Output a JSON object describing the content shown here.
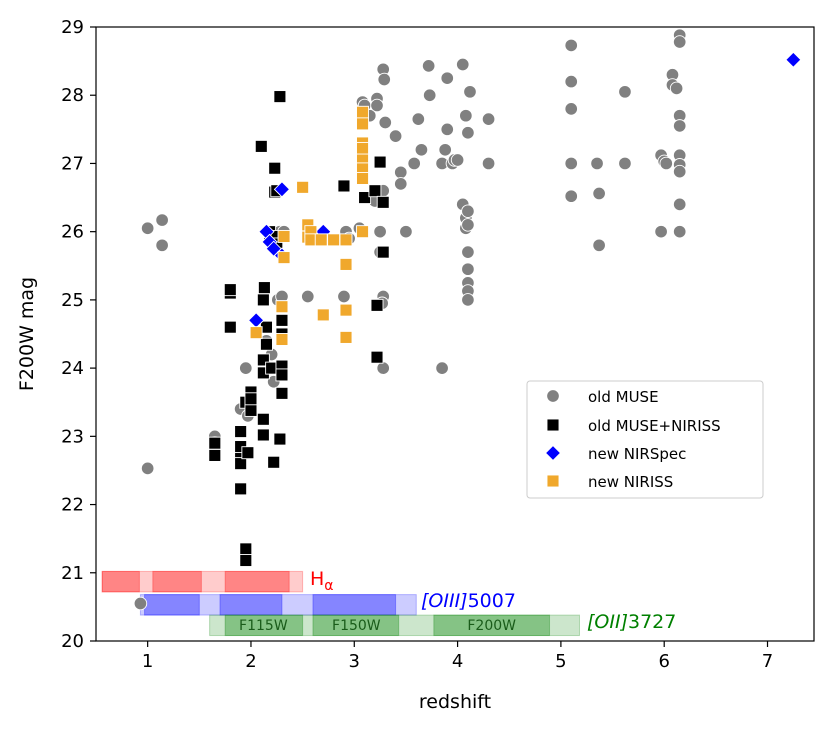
{
  "chart_data": {
    "type": "scatter",
    "xlabel": "redshift",
    "ylabel": "F200W mag",
    "xlim": [
      0.5,
      7.45
    ],
    "ylim": [
      20,
      29
    ],
    "xticks": [
      "1",
      "2",
      "3",
      "4",
      "5",
      "6",
      "7"
    ],
    "yticks": [
      "20",
      "21",
      "22",
      "23",
      "24",
      "25",
      "26",
      "27",
      "28",
      "29"
    ],
    "grid": false,
    "legend_position": "center-right",
    "series": [
      {
        "name": "old MUSE",
        "marker": "circle",
        "color": "#808080",
        "points": [
          [
            1.0,
            26.05
          ],
          [
            1.14,
            26.17
          ],
          [
            1.14,
            25.8
          ],
          [
            1.0,
            22.53
          ],
          [
            0.93,
            20.55
          ],
          [
            1.65,
            23.0
          ],
          [
            1.65,
            22.9
          ],
          [
            1.9,
            23.4
          ],
          [
            1.95,
            24.0
          ],
          [
            1.97,
            23.3
          ],
          [
            2.0,
            23.5
          ],
          [
            2.15,
            24.4
          ],
          [
            2.2,
            24.2
          ],
          [
            2.22,
            23.8
          ],
          [
            2.26,
            25.0
          ],
          [
            2.3,
            24.5
          ],
          [
            2.3,
            25.05
          ],
          [
            2.25,
            25.9
          ],
          [
            2.28,
            26.0
          ],
          [
            2.32,
            26.0
          ],
          [
            2.55,
            25.05
          ],
          [
            2.9,
            25.05
          ],
          [
            2.92,
            26.0
          ],
          [
            2.95,
            25.9
          ],
          [
            3.05,
            26.05
          ],
          [
            3.08,
            27.9
          ],
          [
            3.1,
            27.85
          ],
          [
            3.15,
            27.7
          ],
          [
            3.2,
            26.45
          ],
          [
            3.22,
            27.95
          ],
          [
            3.22,
            27.85
          ],
          [
            3.25,
            25.7
          ],
          [
            3.25,
            26.0
          ],
          [
            3.28,
            25.05
          ],
          [
            3.27,
            24.95
          ],
          [
            3.28,
            24.0
          ],
          [
            3.28,
            26.6
          ],
          [
            3.28,
            28.38
          ],
          [
            3.29,
            28.23
          ],
          [
            3.3,
            27.6
          ],
          [
            3.4,
            27.4
          ],
          [
            3.45,
            26.87
          ],
          [
            3.45,
            26.7
          ],
          [
            3.5,
            26.0
          ],
          [
            3.58,
            27.0
          ],
          [
            3.62,
            27.65
          ],
          [
            3.65,
            27.2
          ],
          [
            3.72,
            28.43
          ],
          [
            3.73,
            28.0
          ],
          [
            3.85,
            24.0
          ],
          [
            3.85,
            27.0
          ],
          [
            3.88,
            27.2
          ],
          [
            3.9,
            28.25
          ],
          [
            3.9,
            27.5
          ],
          [
            3.95,
            27.0
          ],
          [
            3.97,
            27.05
          ],
          [
            4.0,
            27.05
          ],
          [
            4.05,
            28.45
          ],
          [
            4.05,
            26.4
          ],
          [
            4.08,
            27.7
          ],
          [
            4.08,
            26.05
          ],
          [
            4.1,
            27.45
          ],
          [
            4.08,
            26.2
          ],
          [
            4.1,
            26.3
          ],
          [
            4.1,
            25.7
          ],
          [
            4.1,
            25.45
          ],
          [
            4.1,
            25.25
          ],
          [
            4.1,
            25.13
          ],
          [
            4.1,
            25.0
          ],
          [
            4.1,
            26.1
          ],
          [
            4.12,
            28.05
          ],
          [
            4.3,
            27.65
          ],
          [
            4.3,
            27.0
          ],
          [
            5.1,
            28.73
          ],
          [
            5.1,
            28.2
          ],
          [
            5.1,
            27.8
          ],
          [
            5.1,
            27.0
          ],
          [
            5.1,
            26.52
          ],
          [
            5.35,
            27.0
          ],
          [
            5.37,
            26.56
          ],
          [
            5.37,
            25.8
          ],
          [
            5.62,
            28.05
          ],
          [
            5.62,
            27.0
          ],
          [
            5.97,
            27.12
          ],
          [
            5.97,
            26.0
          ],
          [
            6.0,
            27.03
          ],
          [
            6.02,
            27.0
          ],
          [
            6.08,
            28.3
          ],
          [
            6.08,
            28.15
          ],
          [
            6.12,
            28.1
          ],
          [
            6.15,
            28.88
          ],
          [
            6.15,
            28.78
          ],
          [
            6.15,
            27.7
          ],
          [
            6.15,
            27.55
          ],
          [
            6.15,
            27.12
          ],
          [
            6.15,
            26.98
          ],
          [
            6.15,
            26.88
          ],
          [
            6.15,
            26.4
          ],
          [
            6.15,
            26.0
          ]
        ]
      },
      {
        "name": "old MUSE+NIRISS",
        "marker": "square",
        "color": "#000000",
        "points": [
          [
            1.65,
            22.9
          ],
          [
            1.65,
            22.72
          ],
          [
            1.8,
            25.1
          ],
          [
            1.8,
            25.15
          ],
          [
            1.8,
            24.6
          ],
          [
            1.9,
            23.07
          ],
          [
            1.9,
            22.7
          ],
          [
            1.9,
            22.85
          ],
          [
            1.9,
            22.6
          ],
          [
            1.9,
            22.23
          ],
          [
            1.95,
            21.35
          ],
          [
            1.95,
            21.18
          ],
          [
            1.95,
            23.5
          ],
          [
            1.97,
            22.76
          ],
          [
            2.0,
            23.65
          ],
          [
            2.0,
            23.38
          ],
          [
            2.0,
            23.55
          ],
          [
            2.1,
            27.25
          ],
          [
            2.12,
            23.25
          ],
          [
            2.12,
            23.02
          ],
          [
            2.12,
            24.12
          ],
          [
            2.12,
            23.93
          ],
          [
            2.12,
            25.0
          ],
          [
            2.13,
            25.18
          ],
          [
            2.15,
            24.6
          ],
          [
            2.15,
            24.35
          ],
          [
            2.18,
            25.9
          ],
          [
            2.18,
            26.0
          ],
          [
            2.2,
            24.0
          ],
          [
            2.22,
            22.62
          ],
          [
            2.23,
            26.93
          ],
          [
            2.23,
            26.58
          ],
          [
            2.25,
            26.6
          ],
          [
            2.25,
            25.93
          ],
          [
            2.25,
            25.82
          ],
          [
            2.28,
            27.98
          ],
          [
            2.28,
            22.96
          ],
          [
            2.3,
            23.63
          ],
          [
            2.3,
            24.5
          ],
          [
            2.3,
            24.03
          ],
          [
            2.3,
            23.9
          ],
          [
            2.3,
            24.7
          ],
          [
            2.3,
            24.9
          ],
          [
            2.9,
            26.67
          ],
          [
            3.1,
            26.5
          ],
          [
            3.2,
            26.6
          ],
          [
            3.22,
            24.92
          ],
          [
            3.22,
            24.16
          ],
          [
            3.25,
            27.02
          ],
          [
            3.28,
            26.43
          ],
          [
            3.28,
            25.7
          ]
        ]
      },
      {
        "name": "new NIRSpec",
        "marker": "diamond",
        "color": "#0000ff",
        "points": [
          [
            2.05,
            24.7
          ],
          [
            2.15,
            26.0
          ],
          [
            2.18,
            25.85
          ],
          [
            2.22,
            25.75
          ],
          [
            2.3,
            26.62
          ],
          [
            2.3,
            25.65
          ],
          [
            2.7,
            26.0
          ],
          [
            7.25,
            28.52
          ]
        ]
      },
      {
        "name": "new NIRISS",
        "marker": "square",
        "color": "#f0a82c",
        "points": [
          [
            2.05,
            24.52
          ],
          [
            2.3,
            24.9
          ],
          [
            2.3,
            24.42
          ],
          [
            2.32,
            25.93
          ],
          [
            2.32,
            25.62
          ],
          [
            2.5,
            26.65
          ],
          [
            2.55,
            26.1
          ],
          [
            2.55,
            25.92
          ],
          [
            2.58,
            26.0
          ],
          [
            2.58,
            25.88
          ],
          [
            2.68,
            25.88
          ],
          [
            2.7,
            24.78
          ],
          [
            2.8,
            25.88
          ],
          [
            2.92,
            25.88
          ],
          [
            2.92,
            25.52
          ],
          [
            2.92,
            24.85
          ],
          [
            2.92,
            24.45
          ],
          [
            3.08,
            27.75
          ],
          [
            3.08,
            27.58
          ],
          [
            3.08,
            27.3
          ],
          [
            3.08,
            27.22
          ],
          [
            3.08,
            27.05
          ],
          [
            3.08,
            26.92
          ],
          [
            3.08,
            26.78
          ],
          [
            3.08,
            26.0
          ]
        ]
      }
    ],
    "bands": [
      {
        "name": "Ha",
        "label_main": "H",
        "label_sub": "α",
        "color": "#ff0000",
        "y": [
          20.72,
          21.02
        ],
        "segments": [
          [
            0.56,
            0.92
          ],
          [
            1.05,
            1.52
          ],
          [
            1.75,
            2.37
          ]
        ],
        "envelope": [
          0.56,
          2.5
        ]
      },
      {
        "name": "OIII",
        "label_main": "[OIII]",
        "label_tail": "5007",
        "color": "#0000ff",
        "y": [
          20.38,
          20.68
        ],
        "segments": [
          [
            0.97,
            1.5
          ],
          [
            1.7,
            2.3
          ],
          [
            2.6,
            3.4
          ]
        ],
        "envelope": [
          0.93,
          3.6
        ]
      },
      {
        "name": "OII",
        "label_main": "[OII]",
        "label_tail": "3727",
        "color": "#008000",
        "y": [
          20.08,
          20.38
        ],
        "segments": [
          [
            1.75,
            2.5
          ],
          [
            2.6,
            3.43
          ],
          [
            3.77,
            4.89
          ]
        ],
        "envelope": [
          1.6,
          5.18
        ]
      }
    ],
    "filters": [
      {
        "label": "F115W",
        "z": 2.12
      },
      {
        "label": "F150W",
        "z": 3.02
      },
      {
        "label": "F200W",
        "z": 4.33
      }
    ]
  }
}
